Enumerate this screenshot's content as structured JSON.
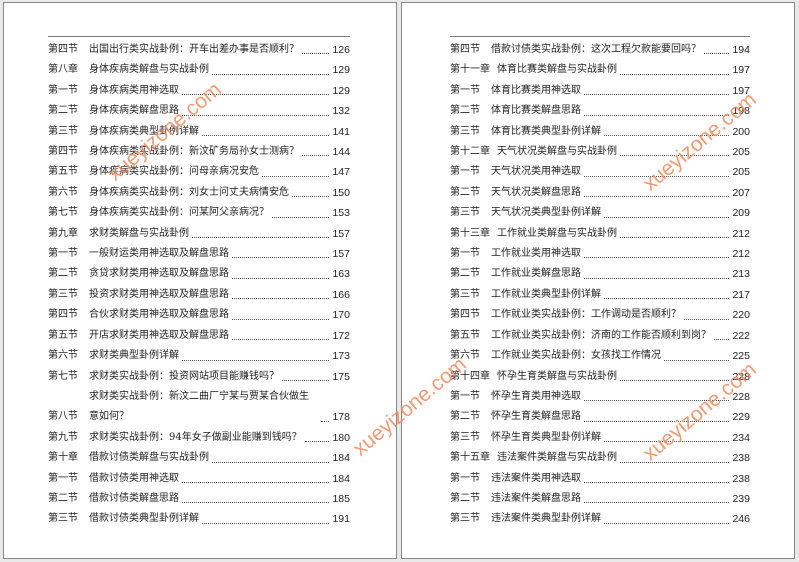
{
  "watermark": "xueyizone.com",
  "left_page": {
    "entries": [
      {
        "label": "第四节",
        "title": "出国出行类实战卦例：开车出差办事是否顺利？",
        "page": 126
      },
      {
        "label": "第八章",
        "title": "身体疾病类解盘与实战卦例",
        "page": 129
      },
      {
        "label": "第一节",
        "title": "身体疾病类用神选取",
        "page": 129
      },
      {
        "label": "第二节",
        "title": "身体疾病类解盘思路",
        "page": 132
      },
      {
        "label": "第三节",
        "title": "身体疾病类典型卦例详解",
        "page": 141
      },
      {
        "label": "第四节",
        "title": "身体疾病类实战卦例：新汶矿务局孙女士测病？",
        "page": 144
      },
      {
        "label": "第五节",
        "title": "身体疾病类实战卦例：问母亲病况安危",
        "page": 147
      },
      {
        "label": "第六节",
        "title": "身体疾病类实战卦例：刘女士问丈夫病情安危",
        "page": 150
      },
      {
        "label": "第七节",
        "title": "身体疾病类实战卦例：问某阿父亲病况？",
        "page": 153
      },
      {
        "label": "第九章",
        "title": "求财类解盘与实战卦例",
        "page": 157
      },
      {
        "label": "第一节",
        "title": "一般财运类用神选取及解盘思路",
        "page": 157
      },
      {
        "label": "第二节",
        "title": "贪贷求财类用神选取及解盘思路",
        "page": 163
      },
      {
        "label": "第三节",
        "title": "投资求财类用神选取及解盘思路",
        "page": 166
      },
      {
        "label": "第四节",
        "title": "合伙求财类用神选取及解盘思路",
        "page": 170
      },
      {
        "label": "第五节",
        "title": "开店求财类用神选取及解盘思路",
        "page": 172
      },
      {
        "label": "第六节",
        "title": "求财类典型卦例详解",
        "page": 173
      },
      {
        "label": "第七节",
        "title": "求财类实战卦例：投资网站项目能赚钱吗？",
        "page": 175
      },
      {
        "label": "第八节",
        "title": "求财类实战卦例：新汶二曲厂宁某与贾某合伙做生意如何？",
        "page": 178
      },
      {
        "label": "第九节",
        "title": "求财类实战卦例：94年女子做副业能赚到钱吗？",
        "page": 180
      },
      {
        "label": "第十章",
        "title": "借款讨债类解盘与实战卦例",
        "page": 184
      },
      {
        "label": "第一节",
        "title": "借款讨债类用神选取",
        "page": 184
      },
      {
        "label": "第二节",
        "title": "借款讨债类解盘思路",
        "page": 185
      },
      {
        "label": "第三节",
        "title": "借款讨债类典型卦例详解",
        "page": 191
      }
    ]
  },
  "right_page": {
    "entries": [
      {
        "label": "第四节",
        "title": "借款讨债类实战卦例：这次工程欠款能要回吗？",
        "page": 194
      },
      {
        "label": "第十一章",
        "title": "体育比赛类解盘与实战卦例",
        "page": 197
      },
      {
        "label": "第一节",
        "title": "体育比赛类用神选取",
        "page": 197
      },
      {
        "label": "第二节",
        "title": "体育比赛类解盘思路",
        "page": 198
      },
      {
        "label": "第三节",
        "title": "体育比赛类典型卦例详解",
        "page": 200
      },
      {
        "label": "第十二章",
        "title": "天气状况类解盘与实战卦例",
        "page": 205
      },
      {
        "label": "第一节",
        "title": "天气状况类用神选取",
        "page": 205
      },
      {
        "label": "第二节",
        "title": "天气状况类解盘思路",
        "page": 207
      },
      {
        "label": "第三节",
        "title": "天气状况类典型卦例详解",
        "page": 209
      },
      {
        "label": "第十三章",
        "title": "工作就业类解盘与实战卦例",
        "page": 212
      },
      {
        "label": "第一节",
        "title": "工作就业类用神选取",
        "page": 212
      },
      {
        "label": "第二节",
        "title": "工作就业类解盘思路",
        "page": 213
      },
      {
        "label": "第三节",
        "title": "工作就业类典型卦例详解",
        "page": 217
      },
      {
        "label": "第四节",
        "title": "工作就业类实战卦例：工作调动是否顺利？",
        "page": 220
      },
      {
        "label": "第五节",
        "title": "工作就业类实战卦例：济南的工作能否顺利到岗？",
        "page": 222
      },
      {
        "label": "第六节",
        "title": "工作就业类实战卦例：女孩找工作情况",
        "page": 225
      },
      {
        "label": "第十四章",
        "title": "怀孕生育类解盘与实战卦例",
        "page": 228
      },
      {
        "label": "第一节",
        "title": "怀孕生育类用神选取",
        "page": 228
      },
      {
        "label": "第二节",
        "title": "怀孕生育类解盘思路",
        "page": 229
      },
      {
        "label": "第三节",
        "title": "怀孕生育类典型卦例详解",
        "page": 234
      },
      {
        "label": "第十五章",
        "title": "违法案件类解盘与实战卦例",
        "page": 238
      },
      {
        "label": "第一节",
        "title": "违法案件类用神选取",
        "page": 238
      },
      {
        "label": "第二节",
        "title": "违法案件类解盘思路",
        "page": 239
      },
      {
        "label": "第三节",
        "title": "违法案件类典型卦例详解",
        "page": 246
      }
    ]
  }
}
